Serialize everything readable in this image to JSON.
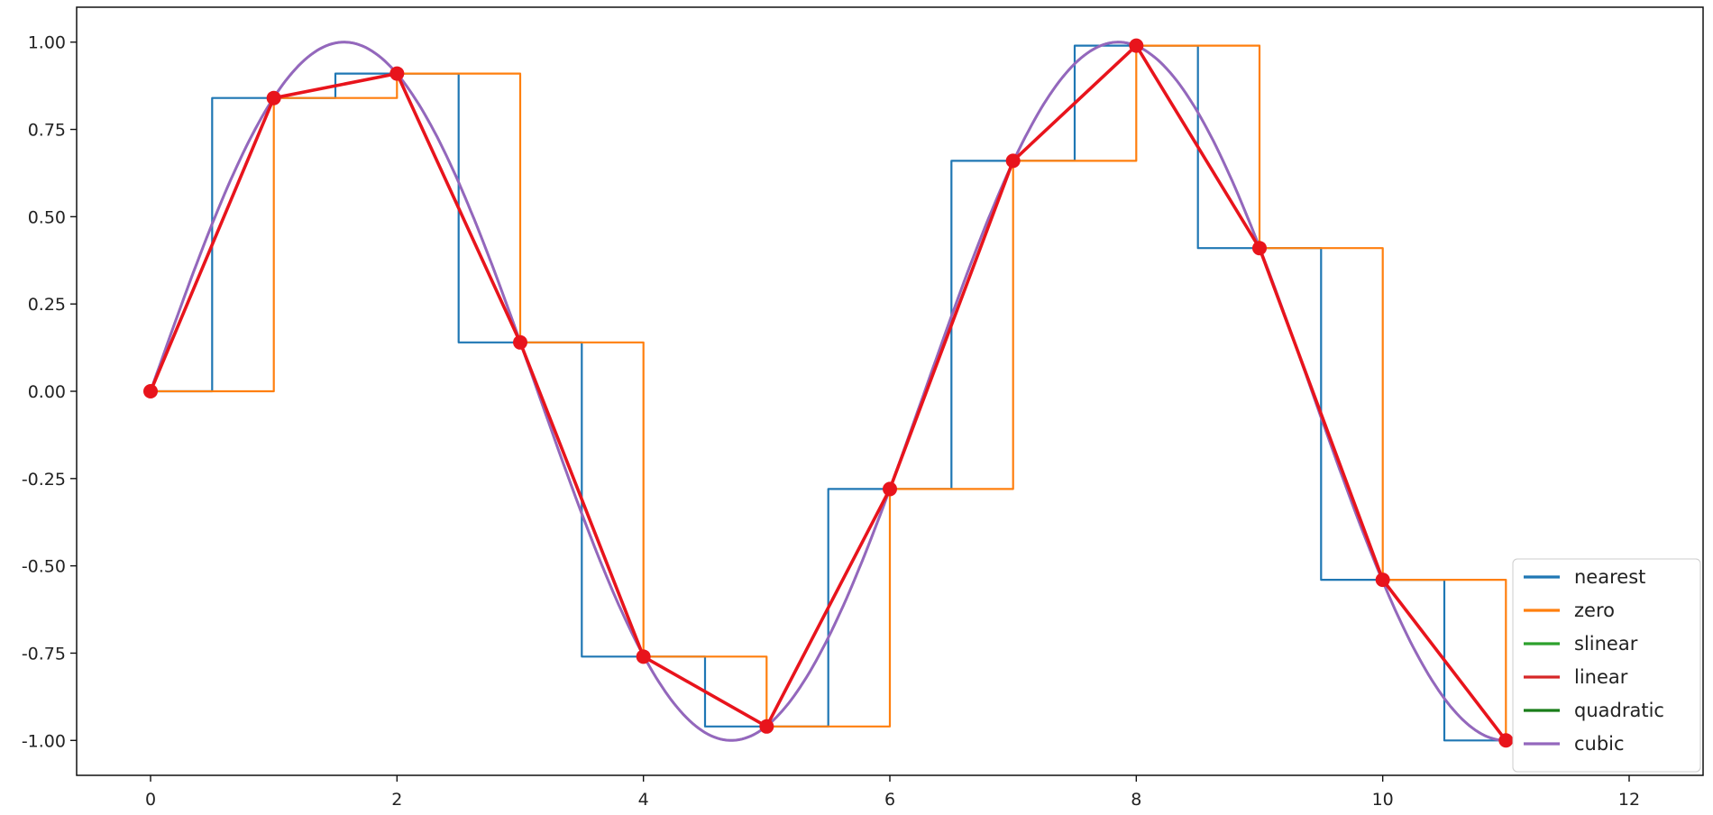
{
  "chart_data": {
    "type": "line",
    "title": "",
    "xlabel": "",
    "ylabel": "",
    "xlim": [
      -0.6,
      12.6
    ],
    "ylim": [
      -1.1,
      1.1
    ],
    "grid": false,
    "legend_position": "lower-right",
    "xticks": [
      0,
      2,
      4,
      6,
      8,
      10,
      12
    ],
    "xtick_labels": [
      "0",
      "2",
      "4",
      "6",
      "8",
      "10",
      "12"
    ],
    "yticks": [
      1.0,
      0.75,
      0.5,
      0.25,
      0.0,
      -0.25,
      -0.5,
      -0.75,
      -1.0
    ],
    "ytick_labels": [
      "1.00",
      "0.75",
      "0.50",
      "0.25",
      "0.00",
      "-0.25",
      "-0.50",
      "-0.75",
      "-1.00"
    ],
    "sample_points": {
      "x": [
        0,
        1,
        2,
        3,
        4,
        5,
        6,
        7,
        8,
        9,
        10,
        11
      ],
      "y": [
        0.0,
        0.84,
        0.91,
        0.14,
        -0.76,
        -0.96,
        -0.28,
        0.66,
        0.99,
        0.41,
        -0.54,
        -1.0
      ],
      "color": "#e8141c"
    },
    "series": [
      {
        "name": "nearest",
        "kind": "nearest",
        "color": "#1f77b4"
      },
      {
        "name": "zero",
        "kind": "zero",
        "color": "#ff7f0e"
      },
      {
        "name": "slinear",
        "kind": "linear",
        "color": "#2ca02c"
      },
      {
        "name": "linear",
        "kind": "linear",
        "color": "#d62728"
      },
      {
        "name": "quadratic",
        "kind": "smooth",
        "color": "#1a7d1a"
      },
      {
        "name": "cubic",
        "kind": "smooth",
        "color": "#9467bd"
      }
    ]
  }
}
